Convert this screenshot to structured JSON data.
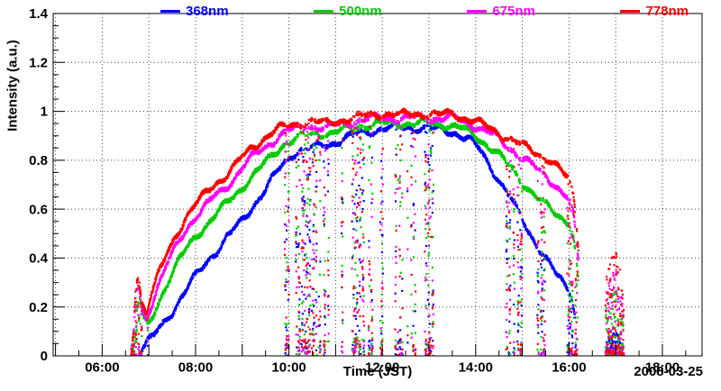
{
  "chart_data": {
    "type": "scatter",
    "title": "",
    "xlabel": "Time (JST)",
    "ylabel": "Intensity (a.u.)",
    "annotation_date": "2008-03-25",
    "x_range": [
      4.95,
      18.85
    ],
    "y_range": [
      0,
      1.4
    ],
    "x_ticks": [
      {
        "value": 6,
        "label": "06:00"
      },
      {
        "value": 8,
        "label": "08:00"
      },
      {
        "value": 10,
        "label": "10:00"
      },
      {
        "value": 12,
        "label": "12:00"
      },
      {
        "value": 14,
        "label": "14:00"
      },
      {
        "value": 16,
        "label": "16:00"
      },
      {
        "value": 18,
        "label": "18:00"
      }
    ],
    "x_grid_step_hours": 1,
    "x_minor_step_hours": 0.5,
    "y_ticks": [
      {
        "value": 0,
        "label": "0"
      },
      {
        "value": 0.2,
        "label": "0.2"
      },
      {
        "value": 0.4,
        "label": "0.4"
      },
      {
        "value": 0.6,
        "label": "0.6"
      },
      {
        "value": 0.8,
        "label": "0.8"
      },
      {
        "value": 1,
        "label": "1"
      },
      {
        "value": 1.2,
        "label": "1.2"
      },
      {
        "value": 1.4,
        "label": "1.4"
      }
    ],
    "y_minor_step": 0.05,
    "grid": true,
    "grid_style": "dotted",
    "legend_position": "top",
    "marker": {
      "shape": "square",
      "size": 2.2
    },
    "sample_step_hours": 0.004,
    "series": [
      {
        "name": "368nm",
        "color": "#0000ff",
        "segments": [
          {
            "points": [
              [
                6.8,
                0.02
              ],
              [
                6.95,
                0.05
              ],
              [
                7.1,
                0.08
              ],
              [
                7.3,
                0.13
              ],
              [
                7.5,
                0.18
              ],
              [
                7.7,
                0.24
              ],
              [
                7.9,
                0.3
              ],
              [
                8.1,
                0.35
              ],
              [
                8.3,
                0.4
              ],
              [
                8.5,
                0.44
              ],
              [
                8.7,
                0.49
              ],
              [
                8.9,
                0.53
              ],
              [
                9.1,
                0.58
              ],
              [
                9.3,
                0.63
              ],
              [
                9.5,
                0.68
              ],
              [
                9.7,
                0.74
              ],
              [
                9.9,
                0.79
              ],
              [
                10.05,
                0.82
              ],
              [
                10.2,
                0.84
              ],
              [
                10.45,
                0.85
              ],
              [
                10.7,
                0.86
              ],
              [
                10.95,
                0.87
              ],
              [
                11.2,
                0.89
              ],
              [
                11.5,
                0.91
              ],
              [
                12.0,
                0.93
              ],
              [
                12.5,
                0.935
              ],
              [
                13.0,
                0.93
              ],
              [
                13.3,
                0.925
              ],
              [
                13.6,
                0.91
              ],
              [
                13.9,
                0.88
              ],
              [
                14.1,
                0.84
              ],
              [
                14.3,
                0.78
              ],
              [
                14.5,
                0.72
              ],
              [
                14.7,
                0.66
              ],
              [
                14.9,
                0.59
              ],
              [
                15.1,
                0.52
              ],
              [
                15.3,
                0.46
              ],
              [
                15.5,
                0.4
              ],
              [
                15.7,
                0.34
              ],
              [
                15.9,
                0.29
              ],
              [
                16.05,
                0.26
              ],
              [
                16.15,
                0.15
              ]
            ]
          },
          {
            "points": [
              [
                16.8,
                0.05
              ],
              [
                16.95,
                0.1
              ],
              [
                17.05,
                0.11
              ],
              [
                17.15,
                0.06
              ]
            ]
          }
        ]
      },
      {
        "name": "500nm",
        "color": "#00cc00",
        "segments": [
          {
            "points": [
              [
                6.65,
                0.02
              ],
              [
                6.7,
                0.06
              ],
              [
                6.75,
                0.2
              ],
              [
                6.8,
                0.24
              ],
              [
                6.88,
                0.15
              ],
              [
                6.98,
                0.12
              ],
              [
                7.1,
                0.17
              ],
              [
                7.25,
                0.24
              ],
              [
                7.45,
                0.32
              ],
              [
                7.65,
                0.39
              ],
              [
                7.85,
                0.45
              ],
              [
                8.05,
                0.5
              ],
              [
                8.25,
                0.54
              ],
              [
                8.45,
                0.58
              ],
              [
                8.65,
                0.62
              ],
              [
                8.85,
                0.66
              ],
              [
                9.05,
                0.7
              ],
              [
                9.25,
                0.74
              ],
              [
                9.45,
                0.78
              ],
              [
                9.65,
                0.82
              ],
              [
                9.85,
                0.86
              ],
              [
                10.05,
                0.88
              ],
              [
                10.3,
                0.9
              ],
              [
                10.6,
                0.91
              ],
              [
                10.9,
                0.91
              ],
              [
                11.2,
                0.925
              ],
              [
                11.5,
                0.94
              ],
              [
                12.0,
                0.95
              ],
              [
                12.5,
                0.95
              ],
              [
                13.0,
                0.95
              ],
              [
                13.4,
                0.945
              ],
              [
                13.7,
                0.93
              ],
              [
                14.0,
                0.9
              ],
              [
                14.2,
                0.87
              ],
              [
                14.4,
                0.84
              ],
              [
                14.6,
                0.8
              ],
              [
                14.8,
                0.76
              ],
              [
                15.0,
                0.71
              ],
              [
                15.2,
                0.67
              ],
              [
                15.4,
                0.63
              ],
              [
                15.6,
                0.6
              ],
              [
                15.8,
                0.57
              ],
              [
                16.0,
                0.55
              ],
              [
                16.1,
                0.48
              ],
              [
                16.2,
                0.3
              ]
            ]
          },
          {
            "points": [
              [
                16.78,
                0.18
              ],
              [
                16.9,
                0.25
              ],
              [
                17.0,
                0.27
              ],
              [
                17.1,
                0.22
              ],
              [
                17.18,
                0.1
              ]
            ]
          }
        ]
      },
      {
        "name": "675nm",
        "color": "#ff00ff",
        "segments": [
          {
            "points": [
              [
                6.62,
                0.02
              ],
              [
                6.67,
                0.08
              ],
              [
                6.72,
                0.26
              ],
              [
                6.78,
                0.29
              ],
              [
                6.85,
                0.19
              ],
              [
                6.95,
                0.15
              ],
              [
                7.05,
                0.21
              ],
              [
                7.2,
                0.29
              ],
              [
                7.4,
                0.38
              ],
              [
                7.6,
                0.45
              ],
              [
                7.8,
                0.52
              ],
              [
                8.0,
                0.57
              ],
              [
                8.2,
                0.61
              ],
              [
                8.4,
                0.65
              ],
              [
                8.6,
                0.68
              ],
              [
                8.8,
                0.72
              ],
              [
                9.0,
                0.77
              ],
              [
                9.2,
                0.81
              ],
              [
                9.4,
                0.84
              ],
              [
                9.6,
                0.87
              ],
              [
                9.8,
                0.9
              ],
              [
                10.0,
                0.92
              ],
              [
                10.2,
                0.93
              ],
              [
                10.5,
                0.94
              ],
              [
                10.8,
                0.93
              ],
              [
                11.0,
                0.945
              ],
              [
                11.3,
                0.955
              ],
              [
                11.6,
                0.965
              ],
              [
                12.0,
                0.975
              ],
              [
                12.4,
                0.97
              ],
              [
                12.8,
                0.975
              ],
              [
                13.2,
                0.97
              ],
              [
                13.5,
                0.975
              ],
              [
                13.8,
                0.955
              ],
              [
                14.0,
                0.94
              ],
              [
                14.2,
                0.92
              ],
              [
                14.4,
                0.9
              ],
              [
                14.6,
                0.87
              ],
              [
                14.8,
                0.84
              ],
              [
                15.0,
                0.81
              ],
              [
                15.2,
                0.78
              ],
              [
                15.4,
                0.75
              ],
              [
                15.6,
                0.72
              ],
              [
                15.8,
                0.68
              ],
              [
                16.0,
                0.64
              ],
              [
                16.1,
                0.57
              ],
              [
                16.2,
                0.38
              ]
            ]
          },
          {
            "points": [
              [
                16.78,
                0.24
              ],
              [
                16.9,
                0.32
              ],
              [
                17.0,
                0.34
              ],
              [
                17.1,
                0.28
              ],
              [
                17.18,
                0.15
              ]
            ]
          }
        ]
      },
      {
        "name": "778nm",
        "color": "#ff0000",
        "segments": [
          {
            "points": [
              [
                6.62,
                0.02
              ],
              [
                6.67,
                0.1
              ],
              [
                6.72,
                0.3
              ],
              [
                6.78,
                0.33
              ],
              [
                6.85,
                0.22
              ],
              [
                6.95,
                0.18
              ],
              [
                7.05,
                0.25
              ],
              [
                7.2,
                0.33
              ],
              [
                7.4,
                0.42
              ],
              [
                7.6,
                0.5
              ],
              [
                7.8,
                0.57
              ],
              [
                8.0,
                0.62
              ],
              [
                8.2,
                0.66
              ],
              [
                8.4,
                0.7
              ],
              [
                8.6,
                0.73
              ],
              [
                8.8,
                0.77
              ],
              [
                9.0,
                0.81
              ],
              [
                9.2,
                0.85
              ],
              [
                9.4,
                0.88
              ],
              [
                9.6,
                0.91
              ],
              [
                9.8,
                0.93
              ],
              [
                10.0,
                0.94
              ],
              [
                10.2,
                0.95
              ],
              [
                10.5,
                0.96
              ],
              [
                10.8,
                0.95
              ],
              [
                11.0,
                0.96
              ],
              [
                11.3,
                0.97
              ],
              [
                11.6,
                0.98
              ],
              [
                12.0,
                0.99
              ],
              [
                12.4,
                0.985
              ],
              [
                12.8,
                0.99
              ],
              [
                13.2,
                0.985
              ],
              [
                13.5,
                0.99
              ],
              [
                13.8,
                0.97
              ],
              [
                14.0,
                0.96
              ],
              [
                14.2,
                0.94
              ],
              [
                14.4,
                0.92
              ],
              [
                14.6,
                0.9
              ],
              [
                14.8,
                0.88
              ],
              [
                15.0,
                0.86
              ],
              [
                15.2,
                0.84
              ],
              [
                15.4,
                0.82
              ],
              [
                15.6,
                0.8
              ],
              [
                15.8,
                0.76
              ],
              [
                16.0,
                0.72
              ],
              [
                16.1,
                0.65
              ],
              [
                16.2,
                0.45
              ]
            ]
          },
          {
            "points": [
              [
                16.78,
                0.3
              ],
              [
                16.9,
                0.4
              ],
              [
                17.0,
                0.42
              ],
              [
                17.1,
                0.35
              ],
              [
                17.18,
                0.2
              ]
            ]
          }
        ]
      }
    ],
    "cloud_windows": [
      {
        "t0": 6.6,
        "t1": 7.0,
        "p": 0.08,
        "len": 5,
        "maxT": 1.0
      },
      {
        "t0": 9.9,
        "t1": 10.12,
        "p": 0.04,
        "len": 4,
        "maxT": 1.0
      },
      {
        "t0": 10.13,
        "t1": 10.5,
        "p": 0.22,
        "len": 8,
        "maxT": 1.0
      },
      {
        "t0": 10.5,
        "t1": 10.85,
        "p": 0.1,
        "len": 6,
        "maxT": 1.0
      },
      {
        "t0": 10.95,
        "t1": 11.2,
        "p": 0.05,
        "len": 5,
        "maxT": 1.0
      },
      {
        "t0": 11.3,
        "t1": 11.65,
        "p": 0.09,
        "len": 6,
        "maxT": 1.0
      },
      {
        "t0": 11.7,
        "t1": 12.05,
        "p": 0.08,
        "len": 6,
        "maxT": 1.0
      },
      {
        "t0": 12.1,
        "t1": 12.55,
        "p": 0.08,
        "len": 6,
        "maxT": 1.0
      },
      {
        "t0": 12.6,
        "t1": 13.3,
        "p": 0.09,
        "len": 6,
        "maxT": 1.0
      },
      {
        "t0": 14.65,
        "t1": 15.0,
        "p": 0.06,
        "len": 6,
        "maxT": 1.0
      },
      {
        "t0": 15.3,
        "t1": 15.55,
        "p": 0.04,
        "len": 5,
        "maxT": 1.0
      },
      {
        "t0": 15.95,
        "t1": 16.22,
        "p": 0.25,
        "len": 8,
        "maxT": 1.0
      },
      {
        "t0": 16.75,
        "t1": 17.2,
        "p": 0.3,
        "len": 8,
        "maxT": 1.0
      }
    ]
  }
}
